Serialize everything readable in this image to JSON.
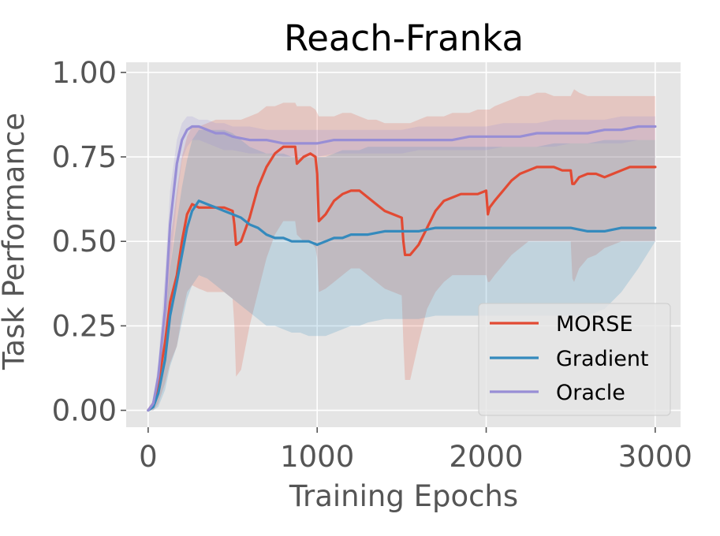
{
  "chart_data": {
    "type": "line",
    "title": "Reach-Franka",
    "xlabel": "Training Epochs",
    "ylabel": "Task Performance",
    "xlim": [
      -130,
      3150
    ],
    "ylim": [
      -0.05,
      1.03
    ],
    "xticks": [
      0,
      1000,
      2000,
      3000
    ],
    "xtick_labels": [
      "0",
      "1000",
      "2000",
      "3000"
    ],
    "yticks": [
      0.0,
      0.25,
      0.5,
      0.75,
      1.0
    ],
    "ytick_labels": [
      "0.00",
      "0.25",
      "0.50",
      "0.75",
      "1.00"
    ],
    "grid": true,
    "legend_position": "lower-right",
    "series": [
      {
        "name": "MORSE",
        "color": "#E24A33",
        "x": [
          0,
          30,
          60,
          100,
          130,
          170,
          200,
          230,
          260,
          300,
          350,
          400,
          450,
          500,
          510,
          520,
          550,
          600,
          650,
          700,
          750,
          800,
          830,
          870,
          880,
          920,
          960,
          990,
          1000,
          1010,
          1050,
          1100,
          1150,
          1200,
          1250,
          1300,
          1350,
          1400,
          1450,
          1500,
          1510,
          1520,
          1550,
          1600,
          1650,
          1700,
          1750,
          1800,
          1850,
          1900,
          1950,
          2000,
          2010,
          2020,
          2050,
          2100,
          2150,
          2200,
          2250,
          2300,
          2350,
          2400,
          2450,
          2500,
          2510,
          2520,
          2550,
          2600,
          2650,
          2700,
          2750,
          2800,
          2850,
          2900,
          2950,
          3000
        ],
        "y": [
          0.0,
          0.02,
          0.08,
          0.2,
          0.32,
          0.4,
          0.5,
          0.58,
          0.61,
          0.6,
          0.6,
          0.6,
          0.6,
          0.59,
          0.55,
          0.49,
          0.5,
          0.57,
          0.66,
          0.72,
          0.76,
          0.78,
          0.78,
          0.78,
          0.73,
          0.75,
          0.76,
          0.75,
          0.7,
          0.56,
          0.58,
          0.62,
          0.64,
          0.65,
          0.65,
          0.63,
          0.61,
          0.59,
          0.58,
          0.57,
          0.5,
          0.46,
          0.46,
          0.49,
          0.54,
          0.59,
          0.62,
          0.63,
          0.64,
          0.64,
          0.64,
          0.65,
          0.58,
          0.6,
          0.62,
          0.65,
          0.68,
          0.7,
          0.71,
          0.72,
          0.72,
          0.72,
          0.71,
          0.71,
          0.67,
          0.67,
          0.69,
          0.7,
          0.7,
          0.69,
          0.7,
          0.71,
          0.72,
          0.72,
          0.72,
          0.72
        ],
        "upper": [
          0.0,
          0.03,
          0.12,
          0.3,
          0.5,
          0.65,
          0.75,
          0.81,
          0.84,
          0.84,
          0.85,
          0.86,
          0.86,
          0.86,
          0.86,
          0.86,
          0.86,
          0.87,
          0.88,
          0.9,
          0.9,
          0.91,
          0.91,
          0.91,
          0.9,
          0.9,
          0.9,
          0.89,
          0.88,
          0.87,
          0.87,
          0.87,
          0.88,
          0.88,
          0.87,
          0.86,
          0.86,
          0.85,
          0.85,
          0.85,
          0.85,
          0.85,
          0.85,
          0.86,
          0.87,
          0.87,
          0.87,
          0.88,
          0.88,
          0.88,
          0.89,
          0.89,
          0.89,
          0.89,
          0.9,
          0.91,
          0.92,
          0.93,
          0.93,
          0.94,
          0.94,
          0.93,
          0.93,
          0.93,
          0.94,
          0.95,
          0.94,
          0.93,
          0.93,
          0.93,
          0.93,
          0.93,
          0.93,
          0.93,
          0.93,
          0.93
        ],
        "lower": [
          0.0,
          0.0,
          0.02,
          0.08,
          0.14,
          0.19,
          0.28,
          0.35,
          0.37,
          0.36,
          0.35,
          0.35,
          0.35,
          0.33,
          0.25,
          0.1,
          0.12,
          0.25,
          0.35,
          0.45,
          0.52,
          0.56,
          0.56,
          0.56,
          0.52,
          0.5,
          0.5,
          0.48,
          0.45,
          0.35,
          0.36,
          0.38,
          0.4,
          0.42,
          0.42,
          0.4,
          0.38,
          0.36,
          0.35,
          0.34,
          0.2,
          0.09,
          0.09,
          0.2,
          0.3,
          0.35,
          0.38,
          0.4,
          0.4,
          0.4,
          0.4,
          0.4,
          0.38,
          0.38,
          0.4,
          0.43,
          0.46,
          0.48,
          0.5,
          0.5,
          0.5,
          0.5,
          0.5,
          0.5,
          0.39,
          0.38,
          0.42,
          0.45,
          0.46,
          0.48,
          0.49,
          0.5,
          0.5,
          0.5,
          0.5,
          0.5
        ]
      },
      {
        "name": "Gradient",
        "color": "#348ABD",
        "x": [
          0,
          30,
          60,
          100,
          130,
          170,
          200,
          230,
          260,
          300,
          350,
          400,
          450,
          500,
          550,
          600,
          650,
          700,
          750,
          800,
          850,
          900,
          950,
          1000,
          1050,
          1100,
          1150,
          1200,
          1250,
          1300,
          1400,
          1500,
          1600,
          1700,
          1800,
          1900,
          2000,
          2100,
          2200,
          2300,
          2400,
          2500,
          2600,
          2700,
          2800,
          2900,
          3000
        ],
        "y": [
          0.0,
          0.01,
          0.05,
          0.15,
          0.28,
          0.38,
          0.46,
          0.54,
          0.59,
          0.62,
          0.61,
          0.6,
          0.59,
          0.58,
          0.57,
          0.55,
          0.54,
          0.52,
          0.51,
          0.51,
          0.5,
          0.5,
          0.5,
          0.49,
          0.5,
          0.51,
          0.51,
          0.52,
          0.52,
          0.52,
          0.53,
          0.53,
          0.53,
          0.54,
          0.54,
          0.54,
          0.54,
          0.54,
          0.54,
          0.54,
          0.54,
          0.54,
          0.53,
          0.53,
          0.54,
          0.54,
          0.54
        ],
        "upper": [
          0.0,
          0.02,
          0.09,
          0.25,
          0.42,
          0.56,
          0.66,
          0.74,
          0.8,
          0.83,
          0.83,
          0.83,
          0.83,
          0.82,
          0.8,
          0.78,
          0.77,
          0.76,
          0.76,
          0.76,
          0.75,
          0.75,
          0.75,
          0.75,
          0.75,
          0.76,
          0.77,
          0.77,
          0.77,
          0.78,
          0.78,
          0.78,
          0.78,
          0.78,
          0.78,
          0.78,
          0.78,
          0.78,
          0.78,
          0.78,
          0.79,
          0.79,
          0.79,
          0.8,
          0.8,
          0.8,
          0.8
        ],
        "lower": [
          0.0,
          0.0,
          0.01,
          0.06,
          0.13,
          0.19,
          0.26,
          0.33,
          0.37,
          0.4,
          0.39,
          0.37,
          0.35,
          0.33,
          0.31,
          0.29,
          0.27,
          0.25,
          0.25,
          0.24,
          0.23,
          0.23,
          0.22,
          0.22,
          0.22,
          0.23,
          0.24,
          0.25,
          0.25,
          0.26,
          0.27,
          0.27,
          0.27,
          0.28,
          0.28,
          0.28,
          0.28,
          0.28,
          0.28,
          0.28,
          0.28,
          0.28,
          0.28,
          0.3,
          0.35,
          0.42,
          0.5
        ]
      },
      {
        "name": "Oracle",
        "color": "#988ED5",
        "x": [
          0,
          30,
          60,
          100,
          130,
          170,
          200,
          230,
          260,
          300,
          350,
          400,
          450,
          500,
          600,
          700,
          800,
          900,
          1000,
          1100,
          1200,
          1300,
          1400,
          1500,
          1600,
          1700,
          1800,
          1900,
          2000,
          2100,
          2200,
          2300,
          2400,
          2500,
          2600,
          2700,
          2800,
          2900,
          3000
        ],
        "y": [
          0.0,
          0.02,
          0.1,
          0.3,
          0.55,
          0.73,
          0.8,
          0.83,
          0.84,
          0.84,
          0.83,
          0.82,
          0.82,
          0.81,
          0.8,
          0.8,
          0.79,
          0.79,
          0.79,
          0.8,
          0.8,
          0.8,
          0.8,
          0.8,
          0.8,
          0.8,
          0.8,
          0.81,
          0.81,
          0.81,
          0.81,
          0.82,
          0.82,
          0.82,
          0.82,
          0.83,
          0.83,
          0.84,
          0.84
        ],
        "upper": [
          0.0,
          0.03,
          0.14,
          0.4,
          0.65,
          0.8,
          0.85,
          0.87,
          0.87,
          0.86,
          0.86,
          0.85,
          0.85,
          0.84,
          0.84,
          0.83,
          0.83,
          0.83,
          0.83,
          0.83,
          0.83,
          0.83,
          0.83,
          0.83,
          0.84,
          0.84,
          0.84,
          0.84,
          0.84,
          0.85,
          0.85,
          0.85,
          0.86,
          0.86,
          0.86,
          0.86,
          0.87,
          0.87,
          0.87
        ],
        "lower": [
          0.0,
          0.01,
          0.06,
          0.2,
          0.42,
          0.62,
          0.74,
          0.78,
          0.8,
          0.8,
          0.79,
          0.78,
          0.77,
          0.77,
          0.76,
          0.76,
          0.75,
          0.75,
          0.75,
          0.76,
          0.76,
          0.76,
          0.76,
          0.76,
          0.77,
          0.77,
          0.77,
          0.77,
          0.77,
          0.78,
          0.78,
          0.78,
          0.78,
          0.79,
          0.79,
          0.79,
          0.79,
          0.8,
          0.8
        ]
      }
    ]
  }
}
